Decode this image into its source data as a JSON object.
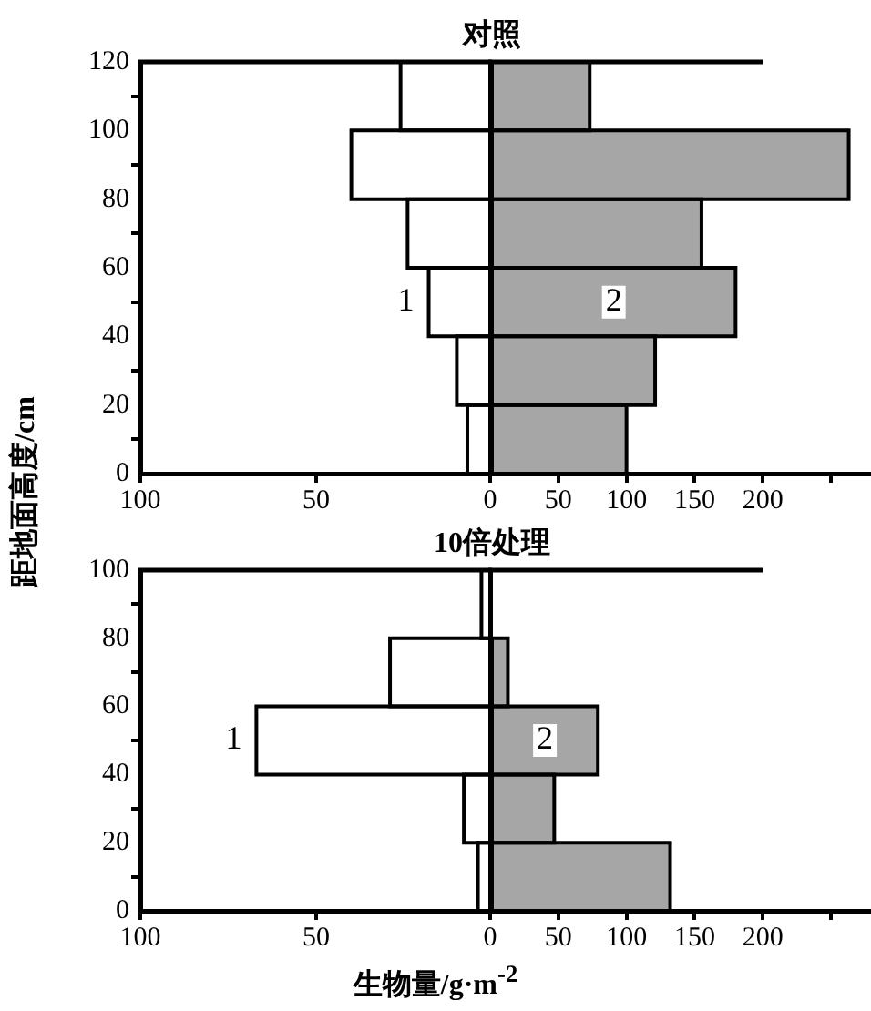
{
  "chart_data": [
    {
      "type": "histogram",
      "orientation": "horizontal",
      "title": "对照",
      "ylabel": "距地面高度/cm",
      "bins": [
        0,
        20,
        40,
        60,
        80,
        100,
        120
      ],
      "series": [
        {
          "name": "1",
          "color": "#000000",
          "values": [
            7,
            10,
            18,
            24,
            40,
            26
          ]
        }
      ],
      "ylim": [
        0,
        120
      ],
      "yticks": [
        0,
        20,
        40,
        60,
        80,
        100,
        120
      ],
      "xlim": [
        100,
        0
      ],
      "xticks": [
        100,
        50
      ],
      "grid": false
    },
    {
      "type": "histogram",
      "orientation": "horizontal",
      "bins": [
        0,
        20,
        40,
        60,
        80,
        100,
        120
      ],
      "series": [
        {
          "name": "2",
          "color": "#000000",
          "values": [
            100,
            121,
            180,
            155,
            263,
            73
          ]
        }
      ],
      "ylim": [
        0,
        120
      ],
      "xlim": [
        0,
        278
      ],
      "xticks": [
        0,
        50,
        100,
        150,
        200,
        {
          "value": 250,
          "label": null
        }
      ],
      "tick_labels": "x",
      "grid": false
    },
    {
      "type": "histogram",
      "orientation": "horizontal",
      "title": "10倍处理",
      "bins": [
        0,
        20,
        40,
        60,
        80,
        100
      ],
      "series": [
        {
          "name": "1",
          "color": "#000000",
          "values": [
            4,
            8,
            67,
            29,
            3
          ]
        }
      ],
      "ylim": [
        0,
        100
      ],
      "yticks": [
        0,
        20,
        40,
        60,
        80,
        100
      ],
      "xlim": [
        100,
        0
      ],
      "xticks": [
        100,
        50
      ],
      "grid": false
    },
    {
      "type": "histogram",
      "orientation": "horizontal",
      "xlabel": "生物量/g·m$^{-2}$",
      "bins": [
        0,
        20,
        40,
        60,
        80,
        100
      ],
      "series": [
        {
          "name": "2",
          "color": "#000000",
          "values": [
            132,
            47,
            79,
            13,
            0
          ]
        }
      ],
      "ylim": [
        0,
        100
      ],
      "xlim": [
        0,
        278
      ],
      "xticks": [
        0,
        50,
        100,
        150,
        200,
        {
          "value": 250,
          "label": null
        }
      ],
      "tick_labels": "x",
      "grid": false
    }
  ]
}
